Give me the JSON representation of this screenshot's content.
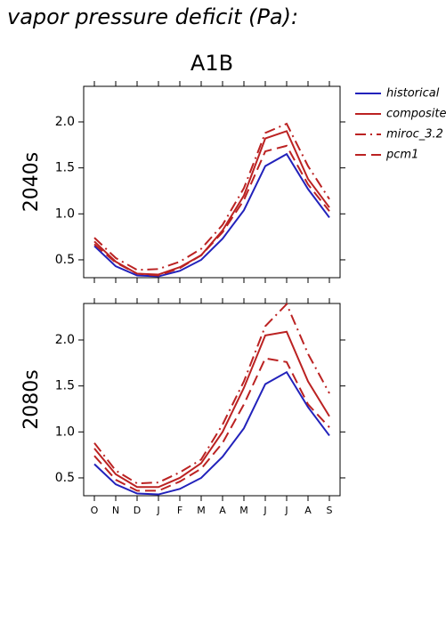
{
  "title": "vapor pressure deficit (Pa):",
  "subtitle": "A1B",
  "chart_data": [
    {
      "type": "line",
      "ylabel": "2040s",
      "legend": "outside-right",
      "ylim": [
        0.306,
        2.387
      ],
      "yticks": [
        0.5,
        {
          "value": 1,
          "label": "1.0"
        },
        1.5,
        {
          "value": 2,
          "label": "2.0"
        }
      ],
      "series": [
        {
          "name": "historical",
          "color": "#2222bb",
          "linestyle": "solid",
          "values": [
            0.65,
            0.43,
            0.33,
            0.32,
            0.38,
            0.5,
            0.73,
            1.04,
            1.52,
            1.65,
            1.27,
            0.96
          ]
        },
        {
          "name": "composite",
          "color": "#bb2222",
          "linestyle": "solid",
          "values": [
            0.7,
            0.48,
            0.35,
            0.34,
            0.42,
            0.55,
            0.82,
            1.2,
            1.82,
            1.9,
            1.38,
            1.07
          ]
        },
        {
          "name": "miroc_3.2",
          "color": "#bb2222",
          "linestyle": "dashdot",
          "values": [
            0.74,
            0.52,
            0.39,
            0.4,
            0.48,
            0.62,
            0.88,
            1.28,
            1.88,
            1.98,
            1.52,
            1.16
          ]
        },
        {
          "name": "pcm1",
          "color": "#bb2222",
          "linestyle": "dashed",
          "values": [
            0.67,
            0.47,
            0.35,
            0.33,
            0.41,
            0.55,
            0.8,
            1.15,
            1.68,
            1.74,
            1.32,
            1.03
          ]
        }
      ]
    },
    {
      "type": "line",
      "ylabel": "2080s",
      "categories": [
        "O",
        "N",
        "D",
        "J",
        "F",
        "M",
        "A",
        "M",
        "J",
        "J",
        "A",
        "S"
      ],
      "ylim": [
        0.306,
        2.397
      ],
      "yticks": [
        0.5,
        {
          "value": 1,
          "label": "1.0"
        },
        1.5,
        {
          "value": 2,
          "label": "2.0"
        }
      ],
      "series": [
        {
          "color": "#2222bb",
          "linestyle": "solid",
          "values": [
            0.65,
            0.43,
            0.33,
            0.32,
            0.38,
            0.5,
            0.73,
            1.04,
            1.52,
            1.65,
            1.27,
            0.96
          ]
        },
        {
          "color": "#bb2222",
          "linestyle": "solid",
          "values": [
            0.82,
            0.54,
            0.4,
            0.4,
            0.5,
            0.66,
            1.0,
            1.48,
            2.05,
            2.09,
            1.55,
            1.17
          ]
        },
        {
          "color": "#bb2222",
          "linestyle": "dashdot",
          "values": [
            0.88,
            0.58,
            0.44,
            0.45,
            0.56,
            0.7,
            1.08,
            1.55,
            2.15,
            2.39,
            1.85,
            1.42
          ]
        },
        {
          "color": "#bb2222",
          "linestyle": "dashed",
          "values": [
            0.74,
            0.48,
            0.36,
            0.36,
            0.46,
            0.6,
            0.88,
            1.3,
            1.8,
            1.76,
            1.3,
            1.05
          ]
        }
      ]
    }
  ]
}
